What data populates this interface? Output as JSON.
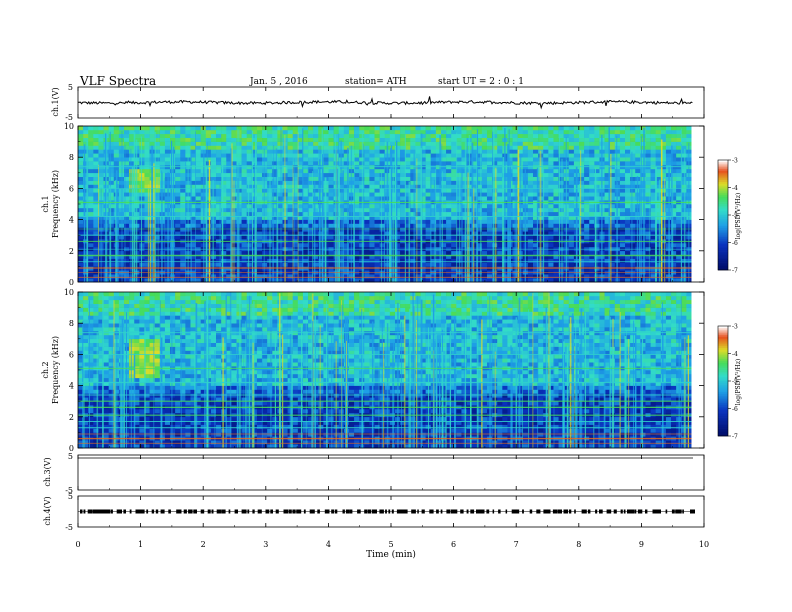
{
  "header": {
    "title": "VLF  Spectra",
    "date": "Jan. 5  , 2016",
    "station": "station= ATH",
    "start": "start  UT  =   2 : 0  : 1"
  },
  "colors": {
    "background_deep": "#000a55",
    "background_blue": "#0a2db4",
    "cyan": "#28c8e6",
    "green": "#3cdc78",
    "yellow": "#e6e628",
    "red": "#dc1e1e"
  },
  "chart_data": [
    {
      "type": "line",
      "name": "ch1-waveform",
      "ylabel": "ch.1(V)",
      "ylim": [
        -5,
        5
      ],
      "y_ticks": [
        "5",
        "-5"
      ],
      "xlim": [
        0,
        10
      ],
      "mean_level": 0.0
    },
    {
      "type": "heatmap",
      "name": "ch1-spectrogram",
      "ylabel_channel": "ch.1",
      "ylabel": "Frequency  (kHz)",
      "ylim": [
        0,
        10
      ],
      "y_ticks": [
        "0",
        "2",
        "4",
        "6",
        "8",
        "10"
      ],
      "xlim": [
        0,
        9.8
      ],
      "hot_region": {
        "t": [
          0.8,
          1.3
        ],
        "f": [
          5.8,
          7.2
        ]
      },
      "colorbar": {
        "label": "log(PSD(V²/Hz)",
        "ticks": [
          "-3",
          "-4",
          "-5",
          "-6",
          "-7"
        ],
        "range": [
          -7,
          -3
        ]
      }
    },
    {
      "type": "heatmap",
      "name": "ch2-spectrogram",
      "ylabel_channel": "ch.2",
      "ylabel": "Frequency  (kHz)",
      "ylim": [
        0,
        10
      ],
      "y_ticks": [
        "0",
        "2",
        "4",
        "6",
        "8",
        "10"
      ],
      "xlim": [
        0,
        9.8
      ],
      "hot_region": {
        "t": [
          0.8,
          1.3
        ],
        "f": [
          4.5,
          7.0
        ]
      },
      "colorbar": {
        "label": "log(PSD(V²/Hz)",
        "ticks": [
          "-3",
          "-4",
          "-5",
          "-6",
          "-7"
        ],
        "range": [
          -7,
          -3
        ]
      }
    },
    {
      "type": "line",
      "name": "ch3-waveform",
      "ylabel": "ch.3(V)",
      "ylim": [
        -5,
        5
      ],
      "y_ticks": [
        "5",
        "-5"
      ],
      "xlim": [
        0,
        10
      ],
      "mean_level": 5.0
    },
    {
      "type": "line",
      "name": "ch4-waveform",
      "ylabel": "ch.4(V)",
      "ylim": [
        -5,
        5
      ],
      "y_ticks": [
        "5",
        "-5"
      ],
      "xlim": [
        0,
        10
      ],
      "mean_level": 0.0
    }
  ],
  "x_axis": {
    "label": "Time  (min)",
    "ticks": [
      "0",
      "1",
      "2",
      "3",
      "4",
      "5",
      "6",
      "7",
      "8",
      "9",
      "10"
    ],
    "range": [
      0,
      10
    ]
  }
}
